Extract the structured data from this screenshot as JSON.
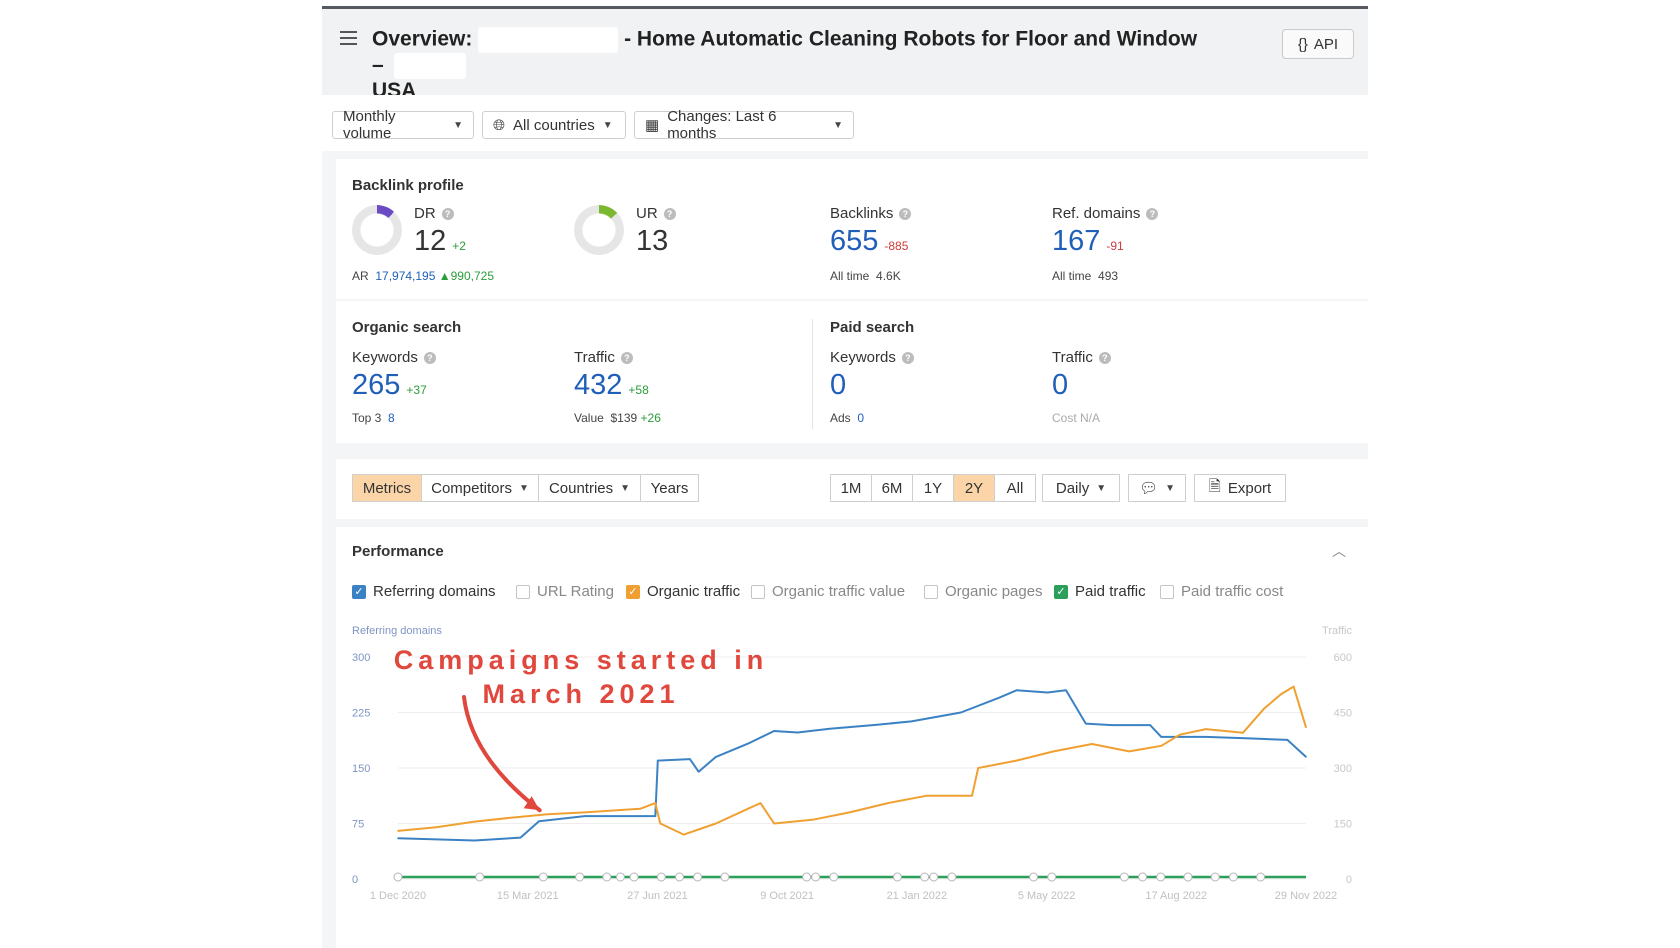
{
  "header": {
    "title_prefix": "Overview:",
    "title_main": "- Home Automatic Cleaning Robots for Floor and Window –",
    "title_suffix": "USA",
    "api_label": "API"
  },
  "filters": {
    "volume": "Monthly volume",
    "countries": "All countries",
    "changes": "Changes: Last 6 months"
  },
  "backlink_profile": {
    "title": "Backlink profile",
    "dr": {
      "label": "DR",
      "value": "12",
      "delta": "+2"
    },
    "ar": {
      "label": "AR",
      "value": "17,974,195",
      "delta": "▲990,725"
    },
    "ur": {
      "label": "UR",
      "value": "13"
    },
    "backlinks": {
      "label": "Backlinks",
      "value": "655",
      "delta": "-885",
      "alltime_label": "All time",
      "alltime_value": "4.6K"
    },
    "ref_domains": {
      "label": "Ref. domains",
      "value": "167",
      "delta": "-91",
      "alltime_label": "All time",
      "alltime_value": "493"
    },
    "dr_color": "#6b4bc4",
    "ur_color": "#7ab82f"
  },
  "organic": {
    "title": "Organic search",
    "keywords": {
      "label": "Keywords",
      "value": "265",
      "delta": "+37",
      "sub_label": "Top 3",
      "sub_value": "8"
    },
    "traffic": {
      "label": "Traffic",
      "value": "432",
      "delta": "+58",
      "sub_label": "Value",
      "sub_value": "$139",
      "sub_delta": "+26"
    }
  },
  "paid": {
    "title": "Paid search",
    "keywords": {
      "label": "Keywords",
      "value": "0",
      "sub_label": "Ads",
      "sub_value": "0"
    },
    "traffic": {
      "label": "Traffic",
      "value": "0",
      "sub_text": "Cost  N/A"
    }
  },
  "tabs": {
    "metrics": "Metrics",
    "competitors": "Competitors",
    "countries": "Countries",
    "years": "Years",
    "ranges": [
      "1M",
      "6M",
      "1Y",
      "2Y",
      "All"
    ],
    "active_range": "2Y",
    "interval": "Daily",
    "export": "Export"
  },
  "performance": {
    "title": "Performance",
    "checkboxes": [
      {
        "label": "Referring domains",
        "checked": true,
        "color": "#3b82c4"
      },
      {
        "label": "URL Rating",
        "checked": false,
        "color": ""
      },
      {
        "label": "Organic traffic",
        "checked": true,
        "color": "#f0a030"
      },
      {
        "label": "Organic traffic value",
        "checked": false,
        "color": ""
      },
      {
        "label": "Organic pages",
        "checked": false,
        "color": ""
      },
      {
        "label": "Paid traffic",
        "checked": true,
        "color": "#2aa05a"
      },
      {
        "label": "Paid traffic cost",
        "checked": false,
        "color": ""
      }
    ],
    "annotation_line1": "Campaigns started in",
    "annotation_line2": "March 2021"
  },
  "chart_data": {
    "type": "line",
    "ylabel_left": "Referring domains",
    "ylabel_right": "Traffic",
    "y_ticks_left": [
      "0",
      "75",
      "150",
      "225",
      "300"
    ],
    "y_ticks_right": [
      "0",
      "150",
      "300",
      "450",
      "600"
    ],
    "ylim_left": [
      0,
      300
    ],
    "ylim_right": [
      0,
      600
    ],
    "x_ticks": [
      "1 Dec 2020",
      "15 Mar 2021",
      "27 Jun 2021",
      "9 Oct 2021",
      "21 Jan 2022",
      "5 May 2022",
      "17 Aug 2022",
      "29 Nov 2022"
    ],
    "x_domain": [
      "2020-12-01",
      "2022-12-05"
    ],
    "series": [
      {
        "name": "Referring domains",
        "axis": "left",
        "color": "#3b82c4",
        "points": [
          [
            "2020-12-01",
            55
          ],
          [
            "2021-02-01",
            52
          ],
          [
            "2021-03-10",
            56
          ],
          [
            "2021-03-25",
            78
          ],
          [
            "2021-05-01",
            85
          ],
          [
            "2021-06-20",
            85
          ],
          [
            "2021-06-27",
            85
          ],
          [
            "2021-06-29",
            160
          ],
          [
            "2021-07-25",
            162
          ],
          [
            "2021-08-01",
            145
          ],
          [
            "2021-08-15",
            165
          ],
          [
            "2021-09-10",
            183
          ],
          [
            "2021-10-01",
            200
          ],
          [
            "2021-10-20",
            198
          ],
          [
            "2021-11-15",
            203
          ],
          [
            "2021-12-20",
            208
          ],
          [
            "2022-01-20",
            213
          ],
          [
            "2022-03-01",
            225
          ],
          [
            "2022-04-01",
            245
          ],
          [
            "2022-04-15",
            255
          ],
          [
            "2022-05-10",
            252
          ],
          [
            "2022-05-25",
            255
          ],
          [
            "2022-06-10",
            210
          ],
          [
            "2022-07-01",
            208
          ],
          [
            "2022-08-01",
            208
          ],
          [
            "2022-08-10",
            192
          ],
          [
            "2022-09-15",
            192
          ],
          [
            "2022-10-20",
            190
          ],
          [
            "2022-11-20",
            188
          ],
          [
            "2022-12-05",
            165
          ]
        ]
      },
      {
        "name": "Organic traffic",
        "axis": "right",
        "color": "#f0a030",
        "points": [
          [
            "2020-12-01",
            130
          ],
          [
            "2021-01-01",
            140
          ],
          [
            "2021-02-01",
            155
          ],
          [
            "2021-03-01",
            165
          ],
          [
            "2021-04-01",
            175
          ],
          [
            "2021-05-01",
            180
          ],
          [
            "2021-06-15",
            190
          ],
          [
            "2021-06-27",
            205
          ],
          [
            "2021-07-01",
            150
          ],
          [
            "2021-07-20",
            120
          ],
          [
            "2021-08-15",
            150
          ],
          [
            "2021-09-10",
            190
          ],
          [
            "2021-09-20",
            205
          ],
          [
            "2021-10-01",
            150
          ],
          [
            "2021-11-01",
            160
          ],
          [
            "2021-12-01",
            180
          ],
          [
            "2022-01-01",
            205
          ],
          [
            "2022-02-01",
            225
          ],
          [
            "2022-03-10",
            225
          ],
          [
            "2022-03-15",
            300
          ],
          [
            "2022-04-15",
            320
          ],
          [
            "2022-05-15",
            345
          ],
          [
            "2022-06-15",
            365
          ],
          [
            "2022-07-15",
            345
          ],
          [
            "2022-08-10",
            360
          ],
          [
            "2022-08-25",
            390
          ],
          [
            "2022-09-15",
            405
          ],
          [
            "2022-10-15",
            395
          ],
          [
            "2022-11-01",
            460
          ],
          [
            "2022-11-15",
            500
          ],
          [
            "2022-11-25",
            520
          ],
          [
            "2022-12-05",
            410
          ]
        ]
      },
      {
        "name": "Paid traffic",
        "axis": "right",
        "color": "#2aa05a",
        "points": [
          [
            "2020-12-01",
            0
          ],
          [
            "2022-12-05",
            0
          ]
        ]
      }
    ]
  }
}
